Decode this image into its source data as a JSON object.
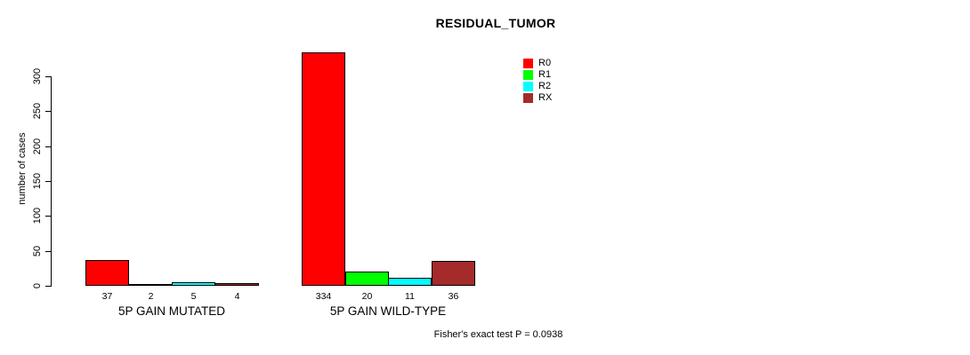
{
  "chart_data": {
    "type": "bar",
    "title": "RESIDUAL_TUMOR",
    "xlabel": "",
    "ylabel": "number of cases",
    "yticks": [
      0,
      50,
      100,
      150,
      200,
      250,
      300
    ],
    "ylim": [
      0,
      300
    ],
    "grid": false,
    "legend_position": "top-right",
    "bar_value_labels": true,
    "categories": [
      "5P GAIN MUTATED",
      "5P GAIN WILD-TYPE"
    ],
    "series": [
      {
        "name": "R0",
        "color": "#ff0000",
        "values": [
          37,
          334
        ]
      },
      {
        "name": "R1",
        "color": "#00ff00",
        "values": [
          2,
          20
        ]
      },
      {
        "name": "R2",
        "color": "#00ffff",
        "values": [
          5,
          11
        ]
      },
      {
        "name": "RX",
        "color": "#a52a2a",
        "values": [
          4,
          36
        ]
      }
    ],
    "annotation": "Fisher's exact test P = 0.0938"
  }
}
